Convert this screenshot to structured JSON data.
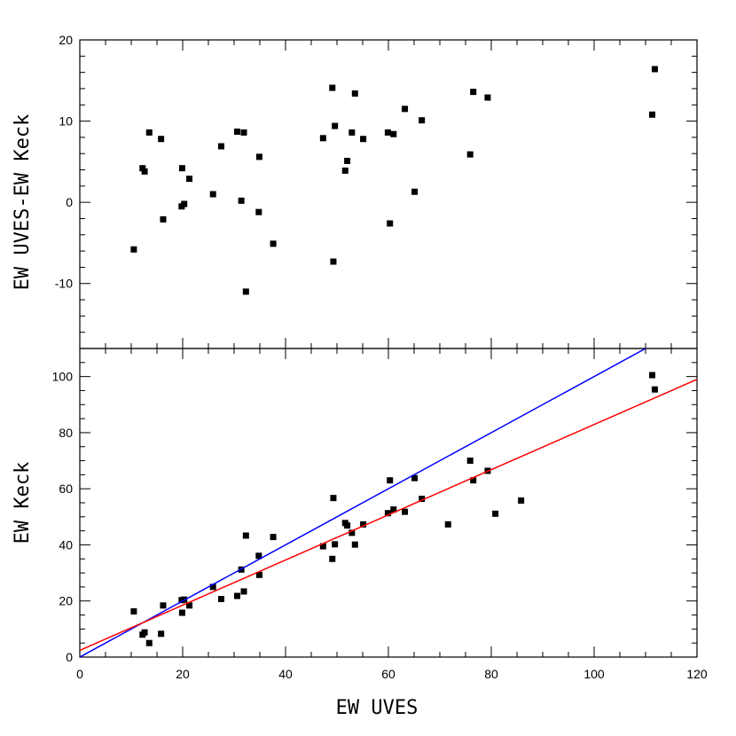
{
  "chart_data": [
    {
      "type": "scatter",
      "panel": "top",
      "xlabel": "",
      "ylabel": "EW UVES-EW Keck",
      "xlim": [
        0,
        120
      ],
      "ylim": [
        -18,
        20
      ],
      "yticks": [
        -10,
        0,
        10,
        20
      ],
      "ytick_labels": [
        "-10",
        "0",
        "10",
        "20"
      ],
      "series": [
        {
          "marker": "square",
          "color": "#000000",
          "points": [
            [
              10.5,
              -5.8
            ],
            [
              12.2,
              4.2
            ],
            [
              12.6,
              3.8
            ],
            [
              13.5,
              8.6
            ],
            [
              15.8,
              7.8
            ],
            [
              16.2,
              -2.1
            ],
            [
              19.8,
              -0.5
            ],
            [
              19.9,
              4.2
            ],
            [
              20.3,
              -0.2
            ],
            [
              21.3,
              2.9
            ],
            [
              25.9,
              1.0
            ],
            [
              27.5,
              6.9
            ],
            [
              30.6,
              8.7
            ],
            [
              31.4,
              0.2
            ],
            [
              31.9,
              8.6
            ],
            [
              32.3,
              -11.0
            ],
            [
              34.8,
              -1.2
            ],
            [
              34.9,
              5.6
            ],
            [
              37.6,
              -5.1
            ],
            [
              47.3,
              7.9
            ],
            [
              49.1,
              14.1
            ],
            [
              49.3,
              -7.3
            ],
            [
              49.6,
              9.4
            ],
            [
              51.6,
              3.9
            ],
            [
              52.0,
              5.1
            ],
            [
              52.9,
              8.6
            ],
            [
              53.5,
              13.4
            ],
            [
              55.1,
              7.8
            ],
            [
              59.9,
              8.6
            ],
            [
              60.3,
              -2.6
            ],
            [
              61.0,
              8.4
            ],
            [
              63.2,
              11.5
            ],
            [
              65.1,
              1.3
            ],
            [
              66.5,
              10.1
            ],
            [
              75.9,
              5.9
            ],
            [
              76.5,
              13.6
            ],
            [
              79.3,
              12.9
            ],
            [
              111.3,
              10.8
            ],
            [
              111.8,
              16.4
            ]
          ]
        }
      ]
    },
    {
      "type": "scatter",
      "panel": "bottom",
      "xlabel": "EW UVES",
      "ylabel": "EW Keck",
      "xlim": [
        0,
        120
      ],
      "ylim": [
        0,
        110
      ],
      "xticks": [
        0,
        20,
        40,
        60,
        80,
        100,
        120
      ],
      "xtick_labels": [
        "0",
        "20",
        "40",
        "60",
        "80",
        "100",
        "120"
      ],
      "yticks": [
        0,
        20,
        40,
        60,
        80,
        100
      ],
      "ytick_labels": [
        "0",
        "20",
        "40",
        "60",
        "80",
        "100"
      ],
      "series": [
        {
          "marker": "square",
          "color": "#000000",
          "points": [
            [
              10.5,
              16.3
            ],
            [
              12.2,
              8.0
            ],
            [
              12.6,
              8.8
            ],
            [
              13.5,
              5.0
            ],
            [
              15.8,
              8.3
            ],
            [
              16.2,
              18.4
            ],
            [
              19.8,
              20.3
            ],
            [
              19.9,
              15.8
            ],
            [
              20.3,
              20.5
            ],
            [
              21.3,
              18.4
            ],
            [
              25.9,
              25.0
            ],
            [
              27.5,
              20.7
            ],
            [
              30.6,
              21.8
            ],
            [
              31.4,
              31.2
            ],
            [
              31.9,
              23.4
            ],
            [
              32.3,
              43.3
            ],
            [
              34.8,
              36.1
            ],
            [
              34.9,
              29.3
            ],
            [
              37.6,
              42.8
            ],
            [
              47.3,
              39.5
            ],
            [
              49.1,
              35.0
            ],
            [
              49.3,
              56.7
            ],
            [
              49.6,
              40.2
            ],
            [
              51.6,
              47.8
            ],
            [
              52.0,
              46.9
            ],
            [
              52.9,
              44.3
            ],
            [
              53.5,
              40.1
            ],
            [
              55.1,
              47.3
            ],
            [
              59.9,
              51.3
            ],
            [
              60.3,
              63.0
            ],
            [
              61.0,
              52.6
            ],
            [
              63.2,
              51.8
            ],
            [
              65.1,
              63.8
            ],
            [
              66.5,
              56.4
            ],
            [
              71.6,
              47.3
            ],
            [
              75.9,
              70.0
            ],
            [
              76.5,
              63.0
            ],
            [
              79.3,
              66.4
            ],
            [
              80.8,
              51.1
            ],
            [
              85.8,
              55.8
            ],
            [
              111.3,
              100.5
            ],
            [
              111.8,
              95.4
            ]
          ]
        },
        {
          "kind": "line",
          "color": "#0000ff",
          "x": [
            0,
            120
          ],
          "y": [
            0,
            120
          ]
        },
        {
          "kind": "line",
          "color": "#ff0000",
          "x": [
            0,
            120
          ],
          "y": [
            2.4,
            99.0
          ]
        }
      ]
    }
  ]
}
